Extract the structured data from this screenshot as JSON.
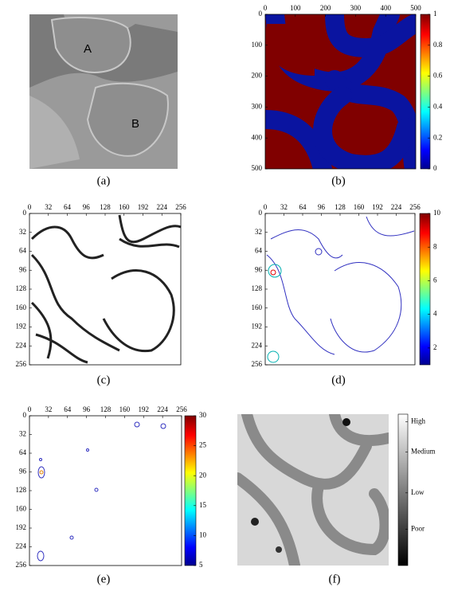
{
  "chart_data": [
    {
      "type": "image",
      "caption": "(a)",
      "labels": [
        "A",
        "B"
      ]
    },
    {
      "type": "heatmap",
      "caption": "(b)",
      "xlim": [
        0,
        500
      ],
      "ylim": [
        0,
        500
      ],
      "xticks": [
        0,
        100,
        200,
        300,
        400,
        500
      ],
      "yticks": [
        0,
        100,
        200,
        300,
        400,
        500
      ],
      "colormap": "jet",
      "clim": [
        0,
        1
      ],
      "cticks": [
        0,
        0.2,
        0.4,
        0.6,
        0.8,
        1
      ]
    },
    {
      "type": "contour",
      "caption": "(c)",
      "xlim": [
        0,
        256
      ],
      "ylim": [
        0,
        256
      ],
      "xticks": [
        0,
        32,
        64,
        96,
        128,
        160,
        192,
        224,
        256
      ],
      "yticks": [
        0,
        32,
        64,
        96,
        128,
        160,
        192,
        224,
        256
      ]
    },
    {
      "type": "contour",
      "caption": "(d)",
      "xlim": [
        0,
        256
      ],
      "ylim": [
        0,
        256
      ],
      "xticks": [
        0,
        32,
        64,
        96,
        128,
        160,
        192,
        224,
        256
      ],
      "yticks": [
        0,
        32,
        64,
        96,
        128,
        160,
        192,
        224,
        256
      ],
      "colormap": "jet",
      "clim": [
        1,
        10
      ],
      "cticks": [
        2,
        4,
        6,
        8,
        10
      ]
    },
    {
      "type": "contour",
      "caption": "(e)",
      "xlim": [
        0,
        256
      ],
      "ylim": [
        0,
        256
      ],
      "xticks": [
        0,
        32,
        64,
        96,
        128,
        160,
        192,
        224,
        256
      ],
      "yticks": [
        0,
        32,
        64,
        96,
        128,
        160,
        192,
        224,
        256
      ],
      "colormap": "jet",
      "clim": [
        5,
        30
      ],
      "cticks": [
        5,
        10,
        15,
        20,
        25,
        30
      ]
    },
    {
      "type": "image",
      "caption": "(f)",
      "colormap": "gray",
      "clim": [
        0,
        1
      ],
      "cticks": [
        {
          "value": 0.95,
          "label": "High"
        },
        {
          "value": 0.75,
          "label": "Medium"
        },
        {
          "value": 0.48,
          "label": "Low"
        },
        {
          "value": 0.24,
          "label": "Poor"
        }
      ]
    }
  ]
}
